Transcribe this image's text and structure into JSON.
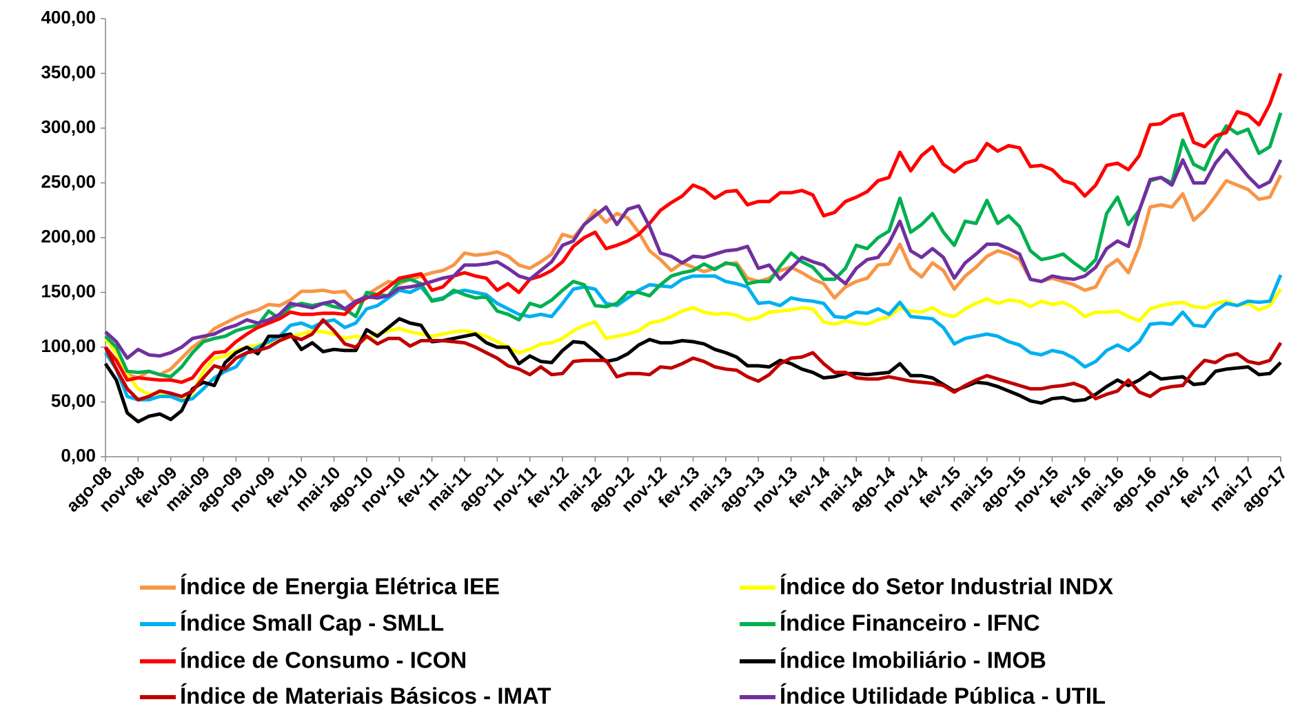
{
  "chart_data": {
    "type": "line",
    "categories": [
      "ago-08",
      null,
      null,
      "nov-08",
      null,
      null,
      "fev-09",
      null,
      null,
      "mai-09",
      null,
      null,
      "ago-09",
      null,
      null,
      "nov-09",
      null,
      null,
      "fev-10",
      null,
      null,
      "mai-10",
      null,
      null,
      "ago-10",
      null,
      null,
      "nov-10",
      null,
      null,
      "fev-11",
      null,
      null,
      "mai-11",
      null,
      null,
      "ago-11",
      null,
      null,
      "nov-11",
      null,
      null,
      "fev-12",
      null,
      null,
      "mai-12",
      null,
      null,
      "ago-12",
      null,
      null,
      "nov-12",
      null,
      null,
      "fev-13",
      null,
      null,
      "mai-13",
      null,
      null,
      "ago-13",
      null,
      null,
      "nov-13",
      null,
      null,
      "fev-14",
      null,
      null,
      "mai-14",
      null,
      null,
      "ago-14",
      null,
      null,
      "nov-14",
      null,
      null,
      "fev-15",
      null,
      null,
      "mai-15",
      null,
      null,
      "ago-15",
      null,
      null,
      "nov-15",
      null,
      null,
      "fev-16",
      null,
      null,
      "mai-16",
      null,
      null,
      "ago-16",
      null,
      null,
      "nov-16",
      null,
      null,
      "fev-17",
      null,
      null,
      "mai-17",
      null,
      null,
      "ago-17"
    ],
    "ylim": [
      0,
      400
    ],
    "yticks": [
      {
        "value": 0,
        "label": "0,00"
      },
      {
        "value": 50,
        "label": "50,00"
      },
      {
        "value": 100,
        "label": "100,00"
      },
      {
        "value": 150,
        "label": "150,00"
      },
      {
        "value": 200,
        "label": "200,00"
      },
      {
        "value": 250,
        "label": "250,00"
      },
      {
        "value": 300,
        "label": "300,00"
      },
      {
        "value": 350,
        "label": "350,00"
      },
      {
        "value": 400,
        "label": "400,00"
      }
    ],
    "grid": false,
    "legend_position": "bottom",
    "series": [
      {
        "name": "Índice de Energia Elétrica IEE",
        "color": "#f79646",
        "values": [
          110,
          100,
          75,
          72,
          78,
          75,
          80,
          90,
          100,
          107,
          117,
          122,
          127,
          131,
          134,
          139,
          138,
          143,
          151,
          151,
          152,
          150,
          151,
          140,
          148,
          154,
          160,
          158,
          162,
          165,
          168,
          170,
          175,
          186,
          184,
          185,
          187,
          183,
          175,
          172,
          178,
          185,
          203,
          200,
          212,
          225,
          214,
          222,
          218,
          205,
          188,
          180,
          170,
          177,
          173,
          169,
          172,
          176,
          177,
          163,
          160,
          163,
          170,
          173,
          168,
          162,
          158,
          145,
          155,
          160,
          163,
          175,
          176,
          194,
          172,
          164,
          177,
          170,
          153,
          165,
          173,
          183,
          188,
          185,
          180,
          162,
          160,
          163,
          160,
          157,
          152,
          155,
          173,
          180,
          168,
          192,
          228,
          230,
          228,
          240,
          216,
          225,
          238,
          252,
          248,
          244,
          235,
          237,
          257
        ]
      },
      {
        "name": "Índice do Setor Industrial INDX",
        "color": "#ffff00",
        "values": [
          108,
          95,
          75,
          62,
          57,
          58,
          55,
          52,
          58,
          78,
          90,
          92,
          97,
          100,
          102,
          104,
          106,
          110,
          112,
          115,
          114,
          112,
          108,
          110,
          108,
          112,
          115,
          117,
          114,
          112,
          110,
          112,
          114,
          115,
          113,
          110,
          105,
          100,
          95,
          98,
          103,
          104,
          108,
          115,
          120,
          123,
          108,
          110,
          112,
          115,
          122,
          124,
          128,
          133,
          136,
          132,
          130,
          131,
          129,
          125,
          127,
          132,
          133,
          134,
          136,
          135,
          123,
          121,
          124,
          122,
          121,
          125,
          128,
          136,
          133,
          132,
          136,
          130,
          128,
          135,
          140,
          144,
          140,
          143,
          142,
          137,
          142,
          139,
          141,
          136,
          128,
          132,
          132,
          133,
          128,
          124,
          135,
          138,
          140,
          141,
          137,
          136,
          140,
          142,
          138,
          140,
          134,
          138,
          153
        ]
      },
      {
        "name": "Índice Small Cap - SMLL",
        "color": "#00b0f0",
        "values": [
          95,
          80,
          55,
          52,
          52,
          55,
          55,
          51,
          53,
          62,
          72,
          78,
          82,
          95,
          100,
          105,
          110,
          120,
          122,
          118,
          123,
          125,
          118,
          122,
          135,
          138,
          145,
          152,
          150,
          155,
          143,
          145,
          150,
          152,
          150,
          148,
          140,
          135,
          130,
          128,
          130,
          128,
          140,
          153,
          155,
          153,
          140,
          138,
          145,
          152,
          157,
          156,
          155,
          162,
          165,
          165,
          165,
          160,
          158,
          155,
          140,
          141,
          138,
          145,
          143,
          142,
          140,
          128,
          127,
          132,
          131,
          135,
          130,
          141,
          128,
          127,
          126,
          118,
          103,
          108,
          110,
          112,
          110,
          105,
          102,
          95,
          93,
          97,
          95,
          90,
          82,
          87,
          97,
          102,
          97,
          105,
          121,
          122,
          121,
          132,
          120,
          119,
          133,
          140,
          138,
          142,
          141,
          142,
          166
        ]
      },
      {
        "name": "Índice Financeiro - IFNC",
        "color": "#00b050",
        "values": [
          110,
          100,
          78,
          77,
          78,
          75,
          73,
          82,
          95,
          105,
          108,
          110,
          115,
          118,
          120,
          133,
          126,
          137,
          140,
          138,
          140,
          137,
          135,
          128,
          150,
          148,
          147,
          160,
          162,
          158,
          142,
          144,
          152,
          148,
          145,
          146,
          133,
          130,
          125,
          140,
          137,
          143,
          152,
          160,
          157,
          138,
          137,
          140,
          150,
          150,
          147,
          157,
          165,
          168,
          170,
          176,
          171,
          177,
          175,
          158,
          160,
          160,
          174,
          186,
          178,
          173,
          162,
          162,
          172,
          193,
          190,
          200,
          206,
          236,
          205,
          212,
          222,
          205,
          193,
          215,
          213,
          234,
          213,
          220,
          210,
          188,
          180,
          182,
          185,
          177,
          170,
          180,
          222,
          237,
          212,
          225,
          252,
          255,
          250,
          289,
          267,
          262,
          285,
          302,
          295,
          299,
          277,
          283,
          314
        ]
      },
      {
        "name": "Índice de Consumo - ICON",
        "color": "#ff0000",
        "values": [
          100,
          88,
          70,
          72,
          71,
          70,
          70,
          68,
          72,
          85,
          95,
          96,
          105,
          112,
          118,
          122,
          126,
          132,
          130,
          130,
          131,
          131,
          130,
          140,
          145,
          148,
          155,
          163,
          165,
          167,
          152,
          155,
          165,
          168,
          165,
          163,
          152,
          158,
          150,
          162,
          165,
          170,
          178,
          192,
          200,
          205,
          190,
          193,
          197,
          203,
          213,
          225,
          232,
          238,
          248,
          244,
          236,
          242,
          243,
          230,
          233,
          233,
          241,
          241,
          243,
          239,
          220,
          223,
          233,
          237,
          242,
          252,
          255,
          278,
          261,
          275,
          283,
          267,
          260,
          268,
          271,
          286,
          279,
          284,
          282,
          265,
          266,
          262,
          252,
          249,
          238,
          248,
          266,
          268,
          262,
          275,
          303,
          304,
          311,
          313,
          287,
          283,
          293,
          296,
          315,
          312,
          303,
          322,
          350
        ]
      },
      {
        "name": "Índice Imobiliário - IMOB",
        "color": "#000000",
        "values": [
          85,
          70,
          40,
          32,
          37,
          39,
          34,
          42,
          62,
          68,
          65,
          86,
          95,
          100,
          94,
          110,
          110,
          112,
          98,
          104,
          96,
          98,
          97,
          97,
          116,
          110,
          118,
          126,
          122,
          120,
          105,
          106,
          108,
          110,
          112,
          104,
          100,
          100,
          85,
          92,
          87,
          86,
          97,
          105,
          104,
          96,
          87,
          89,
          94,
          102,
          107,
          104,
          104,
          106,
          105,
          103,
          98,
          95,
          91,
          83,
          83,
          82,
          88,
          85,
          80,
          77,
          72,
          73,
          76,
          76,
          75,
          76,
          77,
          85,
          74,
          74,
          72,
          66,
          60,
          64,
          68,
          67,
          64,
          60,
          56,
          51,
          49,
          53,
          54,
          51,
          52,
          57,
          64,
          70,
          65,
          70,
          77,
          71,
          72,
          73,
          66,
          67,
          78,
          80,
          81,
          82,
          75,
          76,
          86
        ]
      },
      {
        "name": "Índice de Materiais Básicos - IMAT",
        "color": "#c00000",
        "values": [
          100,
          80,
          62,
          52,
          55,
          60,
          58,
          55,
          60,
          72,
          83,
          80,
          90,
          95,
          97,
          100,
          106,
          110,
          107,
          112,
          125,
          115,
          103,
          100,
          110,
          103,
          108,
          108,
          101,
          106,
          106,
          106,
          105,
          104,
          100,
          95,
          90,
          83,
          80,
          75,
          82,
          75,
          76,
          87,
          88,
          88,
          88,
          73,
          76,
          76,
          75,
          82,
          81,
          85,
          90,
          87,
          82,
          80,
          79,
          73,
          69,
          75,
          85,
          90,
          91,
          95,
          85,
          77,
          77,
          72,
          71,
          71,
          73,
          71,
          69,
          68,
          67,
          65,
          59,
          65,
          70,
          74,
          71,
          68,
          65,
          62,
          62,
          64,
          65,
          67,
          63,
          53,
          57,
          60,
          70,
          59,
          55,
          62,
          64,
          65,
          78,
          88,
          86,
          92,
          94,
          87,
          85,
          88,
          104
        ]
      },
      {
        "name": "Índice Utilidade Pública - UTIL",
        "color": "#7030a0",
        "values": [
          114,
          105,
          90,
          98,
          93,
          92,
          95,
          100,
          108,
          110,
          112,
          117,
          120,
          125,
          122,
          125,
          130,
          140,
          138,
          136,
          140,
          142,
          135,
          142,
          146,
          145,
          147,
          154,
          155,
          157,
          160,
          163,
          165,
          175,
          175,
          176,
          178,
          172,
          165,
          162,
          170,
          178,
          193,
          197,
          212,
          220,
          228,
          212,
          226,
          229,
          210,
          186,
          183,
          177,
          183,
          182,
          185,
          188,
          189,
          192,
          172,
          175,
          162,
          172,
          182,
          178,
          175,
          166,
          158,
          172,
          180,
          182,
          195,
          215,
          188,
          182,
          190,
          182,
          163,
          177,
          185,
          194,
          194,
          190,
          185,
          162,
          160,
          165,
          163,
          162,
          165,
          173,
          190,
          197,
          192,
          225,
          253,
          255,
          248,
          271,
          250,
          250,
          268,
          280,
          268,
          256,
          246,
          251,
          271
        ]
      }
    ]
  }
}
